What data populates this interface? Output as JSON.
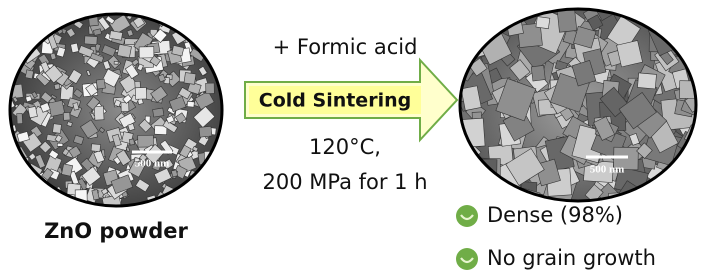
{
  "left": {
    "scale_label": "500 nm",
    "caption": "ZnO powder"
  },
  "process": {
    "reagent": "+ Formic acid",
    "name": "Cold Sintering",
    "conditions": [
      "120°C,",
      "200 MPa for 1 h"
    ]
  },
  "right": {
    "scale_label": "500 nm",
    "results": [
      "Dense (98%)",
      "No grain growth"
    ]
  }
}
